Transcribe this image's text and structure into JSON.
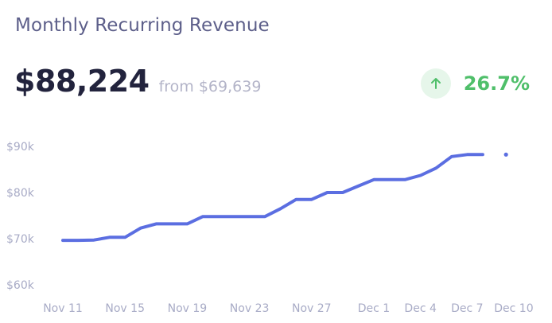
{
  "header": {
    "title": "Monthly Recurring Revenue",
    "value": "$88,224",
    "from_text": "from $69,639",
    "change": "26.7%",
    "change_icon": "arrow-up-icon"
  },
  "colors": {
    "line": "#5b6ee1",
    "positive": "#4fbf6a",
    "positive_bg": "#e6f6ea"
  },
  "chart_data": {
    "type": "line",
    "title": "Monthly Recurring Revenue",
    "xlabel": "",
    "ylabel": "",
    "ylim": [
      60000,
      90000
    ],
    "y_ticks": [
      {
        "value": 90000,
        "label": "$90k"
      },
      {
        "value": 80000,
        "label": "$80k"
      },
      {
        "value": 70000,
        "label": "$70k"
      },
      {
        "value": 60000,
        "label": "$60k"
      }
    ],
    "x_ticks": [
      {
        "day": 0,
        "label": "Nov 11"
      },
      {
        "day": 4,
        "label": "Nov 15"
      },
      {
        "day": 8,
        "label": "Nov 19"
      },
      {
        "day": 12,
        "label": "Nov 23"
      },
      {
        "day": 16,
        "label": "Nov 27"
      },
      {
        "day": 20,
        "label": "Dec 1"
      },
      {
        "day": 23,
        "label": "Dec 4"
      },
      {
        "day": 26,
        "label": "Dec 7"
      },
      {
        "day": 29,
        "label": "Dec 10"
      }
    ],
    "series": [
      {
        "points": [
          {
            "day": 0,
            "value": 69639
          },
          {
            "day": 1,
            "value": 69639
          },
          {
            "day": 2,
            "value": 69700
          },
          {
            "day": 3,
            "value": 70300
          },
          {
            "day": 4,
            "value": 70300
          },
          {
            "day": 5,
            "value": 72300
          },
          {
            "day": 6,
            "value": 73200
          },
          {
            "day": 7,
            "value": 73200
          },
          {
            "day": 8,
            "value": 73200
          },
          {
            "day": 9,
            "value": 74800
          },
          {
            "day": 10,
            "value": 74800
          },
          {
            "day": 11,
            "value": 74800
          },
          {
            "day": 12,
            "value": 74800
          },
          {
            "day": 13,
            "value": 74800
          },
          {
            "day": 14,
            "value": 76500
          },
          {
            "day": 15,
            "value": 78500
          },
          {
            "day": 16,
            "value": 78500
          },
          {
            "day": 17,
            "value": 80000
          },
          {
            "day": 18,
            "value": 80000
          },
          {
            "day": 19,
            "value": 81400
          },
          {
            "day": 20,
            "value": 82800
          },
          {
            "day": 21,
            "value": 82800
          },
          {
            "day": 22,
            "value": 82800
          },
          {
            "day": 23,
            "value": 83700
          },
          {
            "day": 24,
            "value": 85300
          },
          {
            "day": 25,
            "value": 87800
          },
          {
            "day": 26,
            "value": 88224
          },
          {
            "day": 27,
            "value": 88224
          }
        ],
        "trailing_point": {
          "day": 28.5,
          "value": 88224
        }
      }
    ]
  }
}
